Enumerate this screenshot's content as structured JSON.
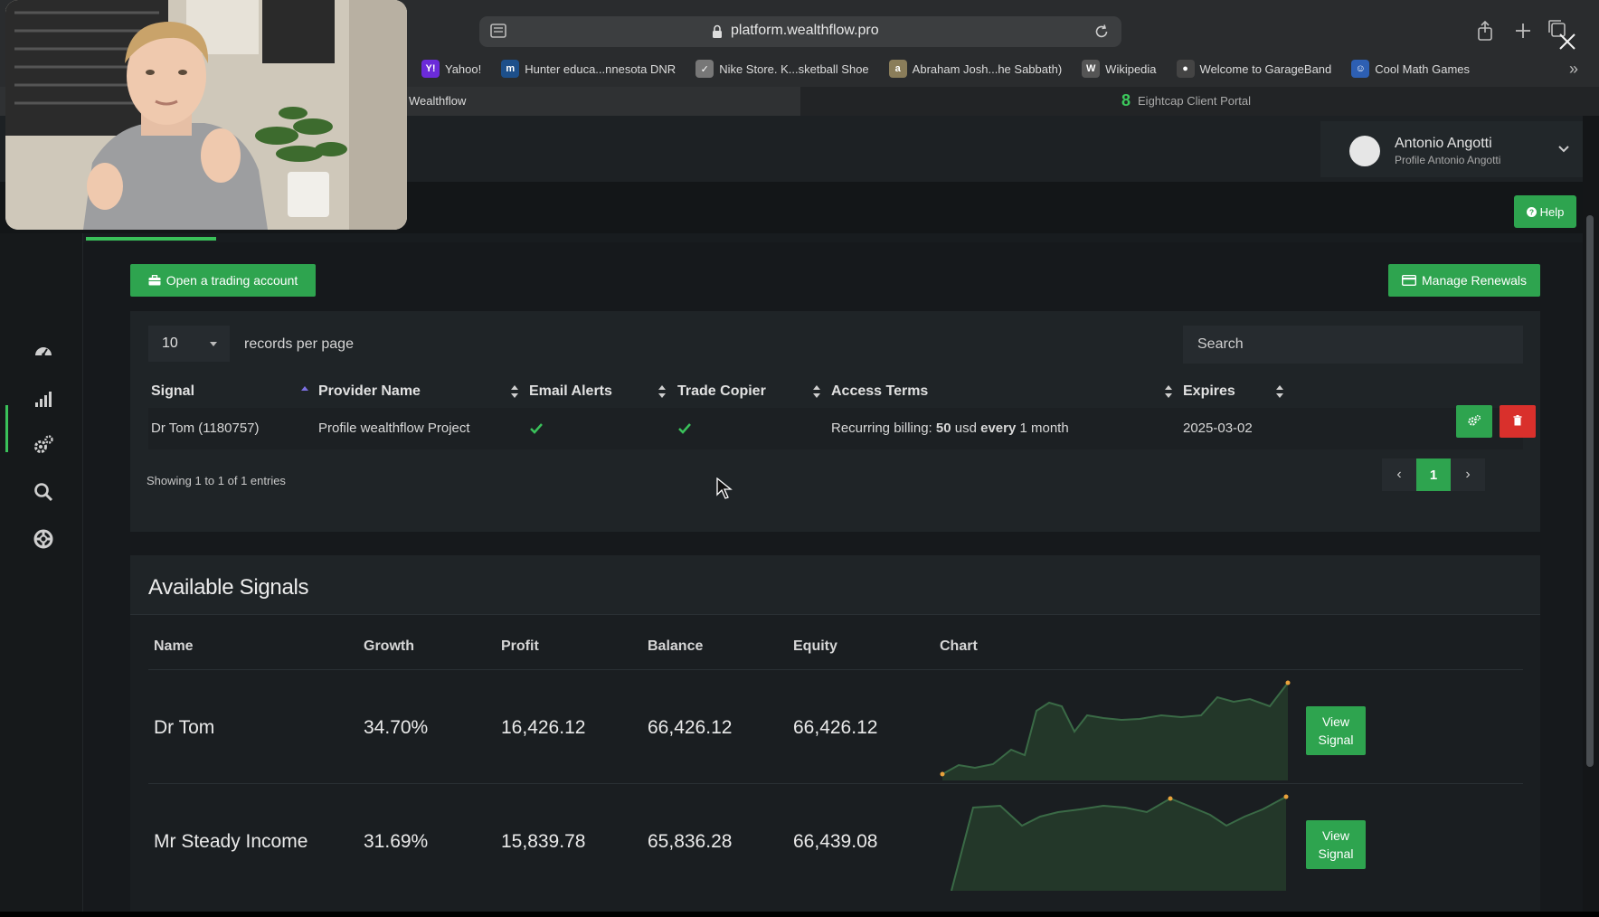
{
  "browser": {
    "url": "platform.wealthflow.pro",
    "bookmarks": [
      {
        "label": "Yahoo!",
        "icon": "yahoo-icon",
        "glyph": "Y!",
        "color": "#6b2bd9"
      },
      {
        "label": "Hunter educa...nnesota DNR",
        "icon": "dnr-icon",
        "glyph": "m",
        "color": "#1d4f8a"
      },
      {
        "label": "Nike Store. K...sketball Shoe",
        "icon": "nike-icon",
        "glyph": "✓",
        "color": "#777777"
      },
      {
        "label": "Abraham Josh...he Sabbath)",
        "icon": "book-icon",
        "glyph": "a",
        "color": "#8a7d5a"
      },
      {
        "label": "Wikipedia",
        "icon": "wikipedia-icon",
        "glyph": "W",
        "color": "#555555"
      },
      {
        "label": "Welcome to GarageBand",
        "icon": "garageband-icon",
        "glyph": "●",
        "color": "#444444"
      },
      {
        "label": "Cool Math Games",
        "icon": "coolmath-icon",
        "glyph": "☺",
        "color": "#2d5fb3"
      }
    ],
    "tabs": {
      "active": "Wealthflow",
      "second": "Eightcap Client Portal"
    }
  },
  "user": {
    "name": "Antonio Angotti",
    "subtitle": "Profile Antonio Angotti"
  },
  "toolbar": {
    "help_label": "Help",
    "open_account_label": "Open a trading account",
    "manage_renewals_label": "Manage Renewals"
  },
  "subscriptions": {
    "records_per_page": "10",
    "records_per_page_label": "records per page",
    "search_placeholder": "Search",
    "columns": [
      "Signal",
      "Provider Name",
      "Email Alerts",
      "Trade Copier",
      "Access Terms",
      "Expires"
    ],
    "row": {
      "signal": "Dr Tom (1180757)",
      "provider": "Profile wealthflow Project",
      "email_alerts": true,
      "trade_copier": true,
      "terms_prefix": "Recurring billing: ",
      "terms_amount": "50",
      "terms_mid": " usd ",
      "terms_every": "every",
      "terms_suffix": " 1 month",
      "expires": "2025-03-02"
    },
    "showing": "Showing 1 to 1 of 1 entries",
    "pagination": {
      "prev": "‹",
      "current": "1",
      "next": "›"
    }
  },
  "available_signals": {
    "title": "Available Signals",
    "columns": [
      "Name",
      "Growth",
      "Profit",
      "Balance",
      "Equity",
      "Chart"
    ],
    "view_label_line1": "View",
    "view_label_line2": "Signal",
    "rows": [
      {
        "name": "Dr Tom",
        "growth": "34.70%",
        "profit": "16,426.12",
        "balance": "66,426.12",
        "equity": "66,426.12"
      },
      {
        "name": "Mr Steady Income",
        "growth": "31.69%",
        "profit": "15,839.78",
        "balance": "65,836.28",
        "equity": "66,439.08"
      }
    ]
  },
  "colors": {
    "accent_green": "#2ea44f",
    "danger_red": "#d9302c",
    "background": "#181c1f"
  }
}
